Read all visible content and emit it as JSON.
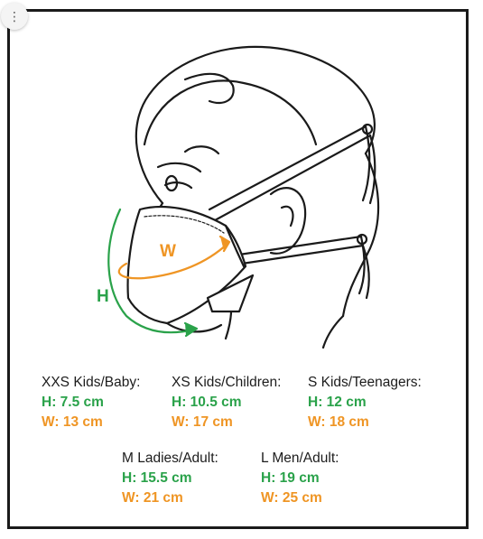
{
  "menu": {
    "icon": "vertical-ellipsis-icon",
    "glyph": "⋮"
  },
  "colors": {
    "height_color": "#2aa24a",
    "width_color": "#ef9524",
    "line_color": "#1a1a1a"
  },
  "diagram": {
    "height_label": "H",
    "width_label": "W"
  },
  "sizes": [
    {
      "name": "XXS Kids/Baby:",
      "h": "H: 7.5 cm",
      "w": "W: 13 cm"
    },
    {
      "name": "XS Kids/Children:",
      "h": "H: 10.5 cm",
      "w": "W: 17 cm"
    },
    {
      "name": "S Kids/Teenagers:",
      "h": "H: 12 cm",
      "w": "W: 18 cm"
    },
    {
      "name": "M Ladies/Adult:",
      "h": "H: 15.5 cm",
      "w": "W: 21 cm"
    },
    {
      "name": "L Men/Adult:",
      "h": "H: 19 cm",
      "w": "W: 25 cm"
    }
  ]
}
